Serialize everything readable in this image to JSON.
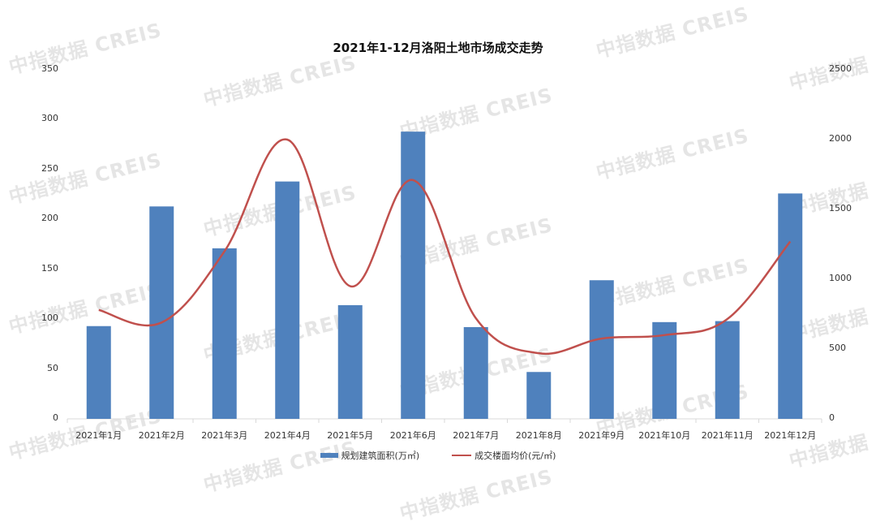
{
  "chart_data": {
    "type": "bar+line",
    "title": "2021年1-12月洛阳土地市场成交走势",
    "categories": [
      "2021年1月",
      "2021年2月",
      "2021年3月",
      "2021年4月",
      "2021年5月",
      "2021年6月",
      "2021年7月",
      "2021年8月",
      "2021年9月",
      "2021年10月",
      "2021年11月",
      "2021年12月"
    ],
    "series": [
      {
        "name": "规划建筑面积(万㎡)",
        "type": "bar",
        "axis": "left",
        "color": "#4f81bd",
        "values": [
          93,
          213,
          171,
          238,
          114,
          288,
          92,
          47,
          139,
          97,
          98,
          226
        ]
      },
      {
        "name": "成交楼面均价(元/㎡)",
        "type": "line",
        "axis": "right",
        "color": "#c0504d",
        "values": [
          780,
          690,
          1200,
          2000,
          950,
          1710,
          720,
          470,
          575,
          600,
          715,
          1270
        ]
      }
    ],
    "left_axis": {
      "ylim": [
        0,
        350
      ],
      "ticks": [
        0,
        50,
        100,
        150,
        200,
        250,
        300,
        350
      ]
    },
    "right_axis": {
      "ylim": [
        0,
        2500
      ],
      "ticks": [
        0,
        500,
        1000,
        1500,
        2000,
        2500
      ]
    },
    "xlabel": "",
    "ylabel": "",
    "grid": false,
    "legend_position": "bottom"
  },
  "legend": {
    "bar_label": "规划建筑面积(万㎡)",
    "line_label": "成交楼面均价(元/㎡)"
  },
  "watermark_text": "中指数据 CREIS"
}
